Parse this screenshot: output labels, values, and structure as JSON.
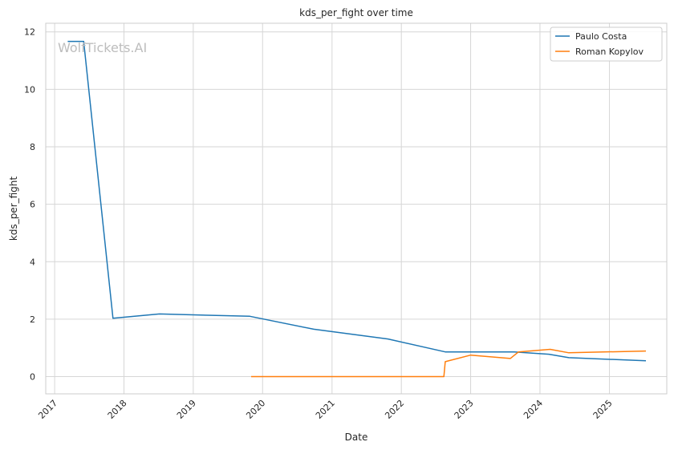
{
  "chart_data": {
    "type": "line",
    "title": "kds_per_fight over time",
    "xlabel": "Date",
    "ylabel": "kds_per_fight",
    "watermark": "WolfTickets.AI",
    "xlim": [
      "2016-11-15",
      "2025-10-30"
    ],
    "ylim": [
      -0.6,
      12.3
    ],
    "x_ticks": [
      "2017",
      "2018",
      "2019",
      "2020",
      "2021",
      "2022",
      "2023",
      "2024",
      "2025"
    ],
    "y_ticks": [
      0,
      2,
      4,
      6,
      8,
      10,
      12
    ],
    "grid": true,
    "legend_position": "top-right",
    "series": [
      {
        "name": "Paulo Costa",
        "color": "#1f77b4",
        "points": [
          [
            "2017-03-11",
            11.67
          ],
          [
            "2017-06-03",
            11.67
          ],
          [
            "2017-11-04",
            2.03
          ],
          [
            "2018-07-07",
            2.18
          ],
          [
            "2019-10-26",
            2.1
          ],
          [
            "2020-09-26",
            1.65
          ],
          [
            "2021-10-23",
            1.31
          ],
          [
            "2022-08-20",
            0.86
          ],
          [
            "2023-08-19",
            0.86
          ],
          [
            "2024-02-17",
            0.78
          ],
          [
            "2024-06-01",
            0.66
          ],
          [
            "2025-07-12",
            0.55
          ]
        ]
      },
      {
        "name": "Roman Kopylov",
        "color": "#ff7f0e",
        "points": [
          [
            "2019-11-02",
            0.0
          ],
          [
            "2022-08-13",
            0.0
          ],
          [
            "2022-08-20",
            0.52
          ],
          [
            "2023-01-01",
            0.75
          ],
          [
            "2023-07-29",
            0.63
          ],
          [
            "2023-09-10",
            0.86
          ],
          [
            "2024-02-24",
            0.95
          ],
          [
            "2024-06-01",
            0.83
          ],
          [
            "2025-07-12",
            0.89
          ]
        ]
      }
    ]
  }
}
